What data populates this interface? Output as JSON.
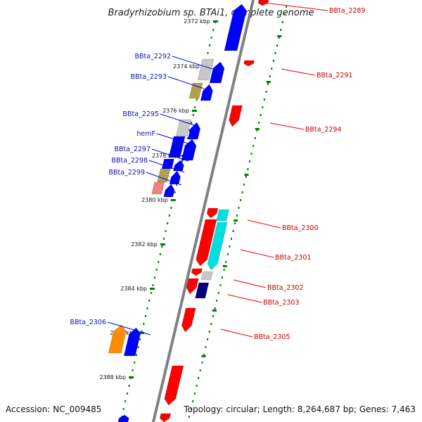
{
  "title": "Bradyrhizobium sp. BTAi1, complete genome",
  "accession_label": "Accession: NC_009485",
  "topology_label": "Topology: circular; Length: 8,264,687 bp; Genes: 7,463",
  "colors": {
    "forward_label": "#1010b0",
    "reverse_label": "#cc0000",
    "red": "#ff0000",
    "blue": "#0000ff",
    "gray": "#c8c8c8",
    "khaki": "#b0a050",
    "pink": "#f08080",
    "cyan": "#00e0e0",
    "navy": "#000080",
    "orange": "#ff8c00",
    "backbone": "#808080",
    "tick": "#008000"
  },
  "kbp_ticks": [
    "2372 kbp",
    "2374 kbp",
    "2376 kbp",
    "2378 kbp",
    "2380 kbp",
    "2382 kbp",
    "2384 kbp",
    "2386 kbp",
    "2388 kbp"
  ],
  "forward_genes": [
    {
      "id": "BBta_2292",
      "label": "BBta_2292",
      "color": "gray"
    },
    {
      "id": "BBta_2293",
      "label": "BBta_2293",
      "color": "khaki"
    },
    {
      "id": "BBta_2295",
      "label": "BBta_2295",
      "color": "gray"
    },
    {
      "id": "hemF",
      "label": "hemF",
      "color": "blue"
    },
    {
      "id": "BBta_2297",
      "label": "BBta_2297",
      "color": "blue"
    },
    {
      "id": "BBta_2298",
      "label": "BBta_2298",
      "color": "khaki"
    },
    {
      "id": "BBta_2299",
      "label": "BBta_2299",
      "color": "pink"
    },
    {
      "id": "BBta_2306",
      "label": "BBta_2306",
      "color": "orange"
    }
  ],
  "reverse_genes": [
    {
      "id": "BBta_2289",
      "label": "BBta_2289",
      "color": "red"
    },
    {
      "id": "BBta_2291",
      "label": "BBta_2291",
      "color": "red"
    },
    {
      "id": "BBta_2294",
      "label": "BBta_2294",
      "color": "red"
    },
    {
      "id": "BBta_2300",
      "label": "BBta_2300",
      "color": "red"
    },
    {
      "id": "BBta_2301",
      "label": "BBta_2301",
      "color": "cyan"
    },
    {
      "id": "BBta_2302",
      "label": "BBta_2302",
      "color": "gray"
    },
    {
      "id": "BBta_2303",
      "label": "BBta_2303",
      "color": "navy"
    },
    {
      "id": "BBta_2305",
      "label": "BBta_2305",
      "color": "red"
    }
  ]
}
